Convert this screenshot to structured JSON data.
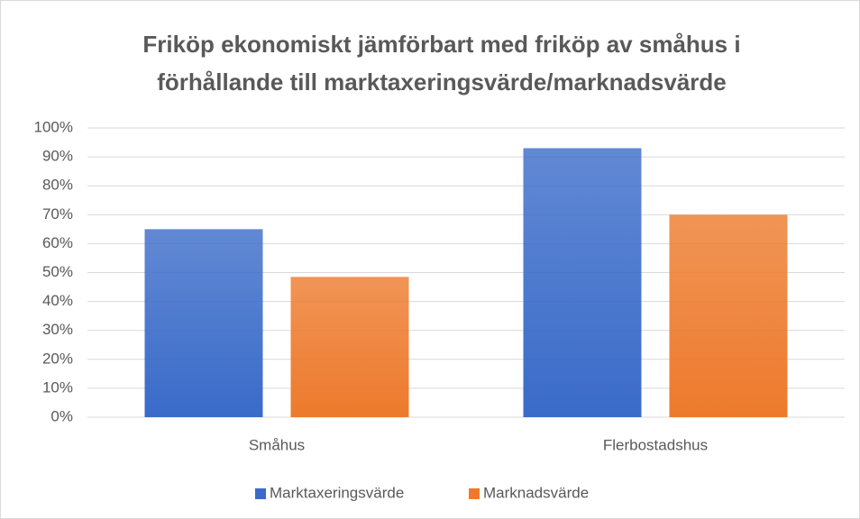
{
  "chart_data": {
    "type": "bar",
    "title": [
      "Friköp ekonomiskt jämförbart med friköp av småhus i",
      "förhållande till marktaxeringsvärde/marknadsvärde"
    ],
    "categories": [
      "Småhus",
      "Flerbostadshus"
    ],
    "series": [
      {
        "name": "Marktaxeringsvärde",
        "color": "#3a6bc9",
        "values": [
          65,
          93
        ]
      },
      {
        "name": "Marknadsvärde",
        "color": "#ed7a2c",
        "values": [
          48.5,
          70
        ]
      }
    ],
    "ylim": [
      0,
      100
    ],
    "yticks": [
      {
        "value": 0,
        "label": "0%"
      },
      {
        "value": 10,
        "label": "10%"
      },
      {
        "value": 20,
        "label": "20%"
      },
      {
        "value": 30,
        "label": "30%"
      },
      {
        "value": 40,
        "label": "40%"
      },
      {
        "value": 50,
        "label": "50%"
      },
      {
        "value": 60,
        "label": "60%"
      },
      {
        "value": 70,
        "label": "70%"
      },
      {
        "value": 80,
        "label": "80%"
      },
      {
        "value": 90,
        "label": "90%"
      },
      {
        "value": 100,
        "label": "100%"
      }
    ],
    "grid": true,
    "legend": "bottom"
  }
}
